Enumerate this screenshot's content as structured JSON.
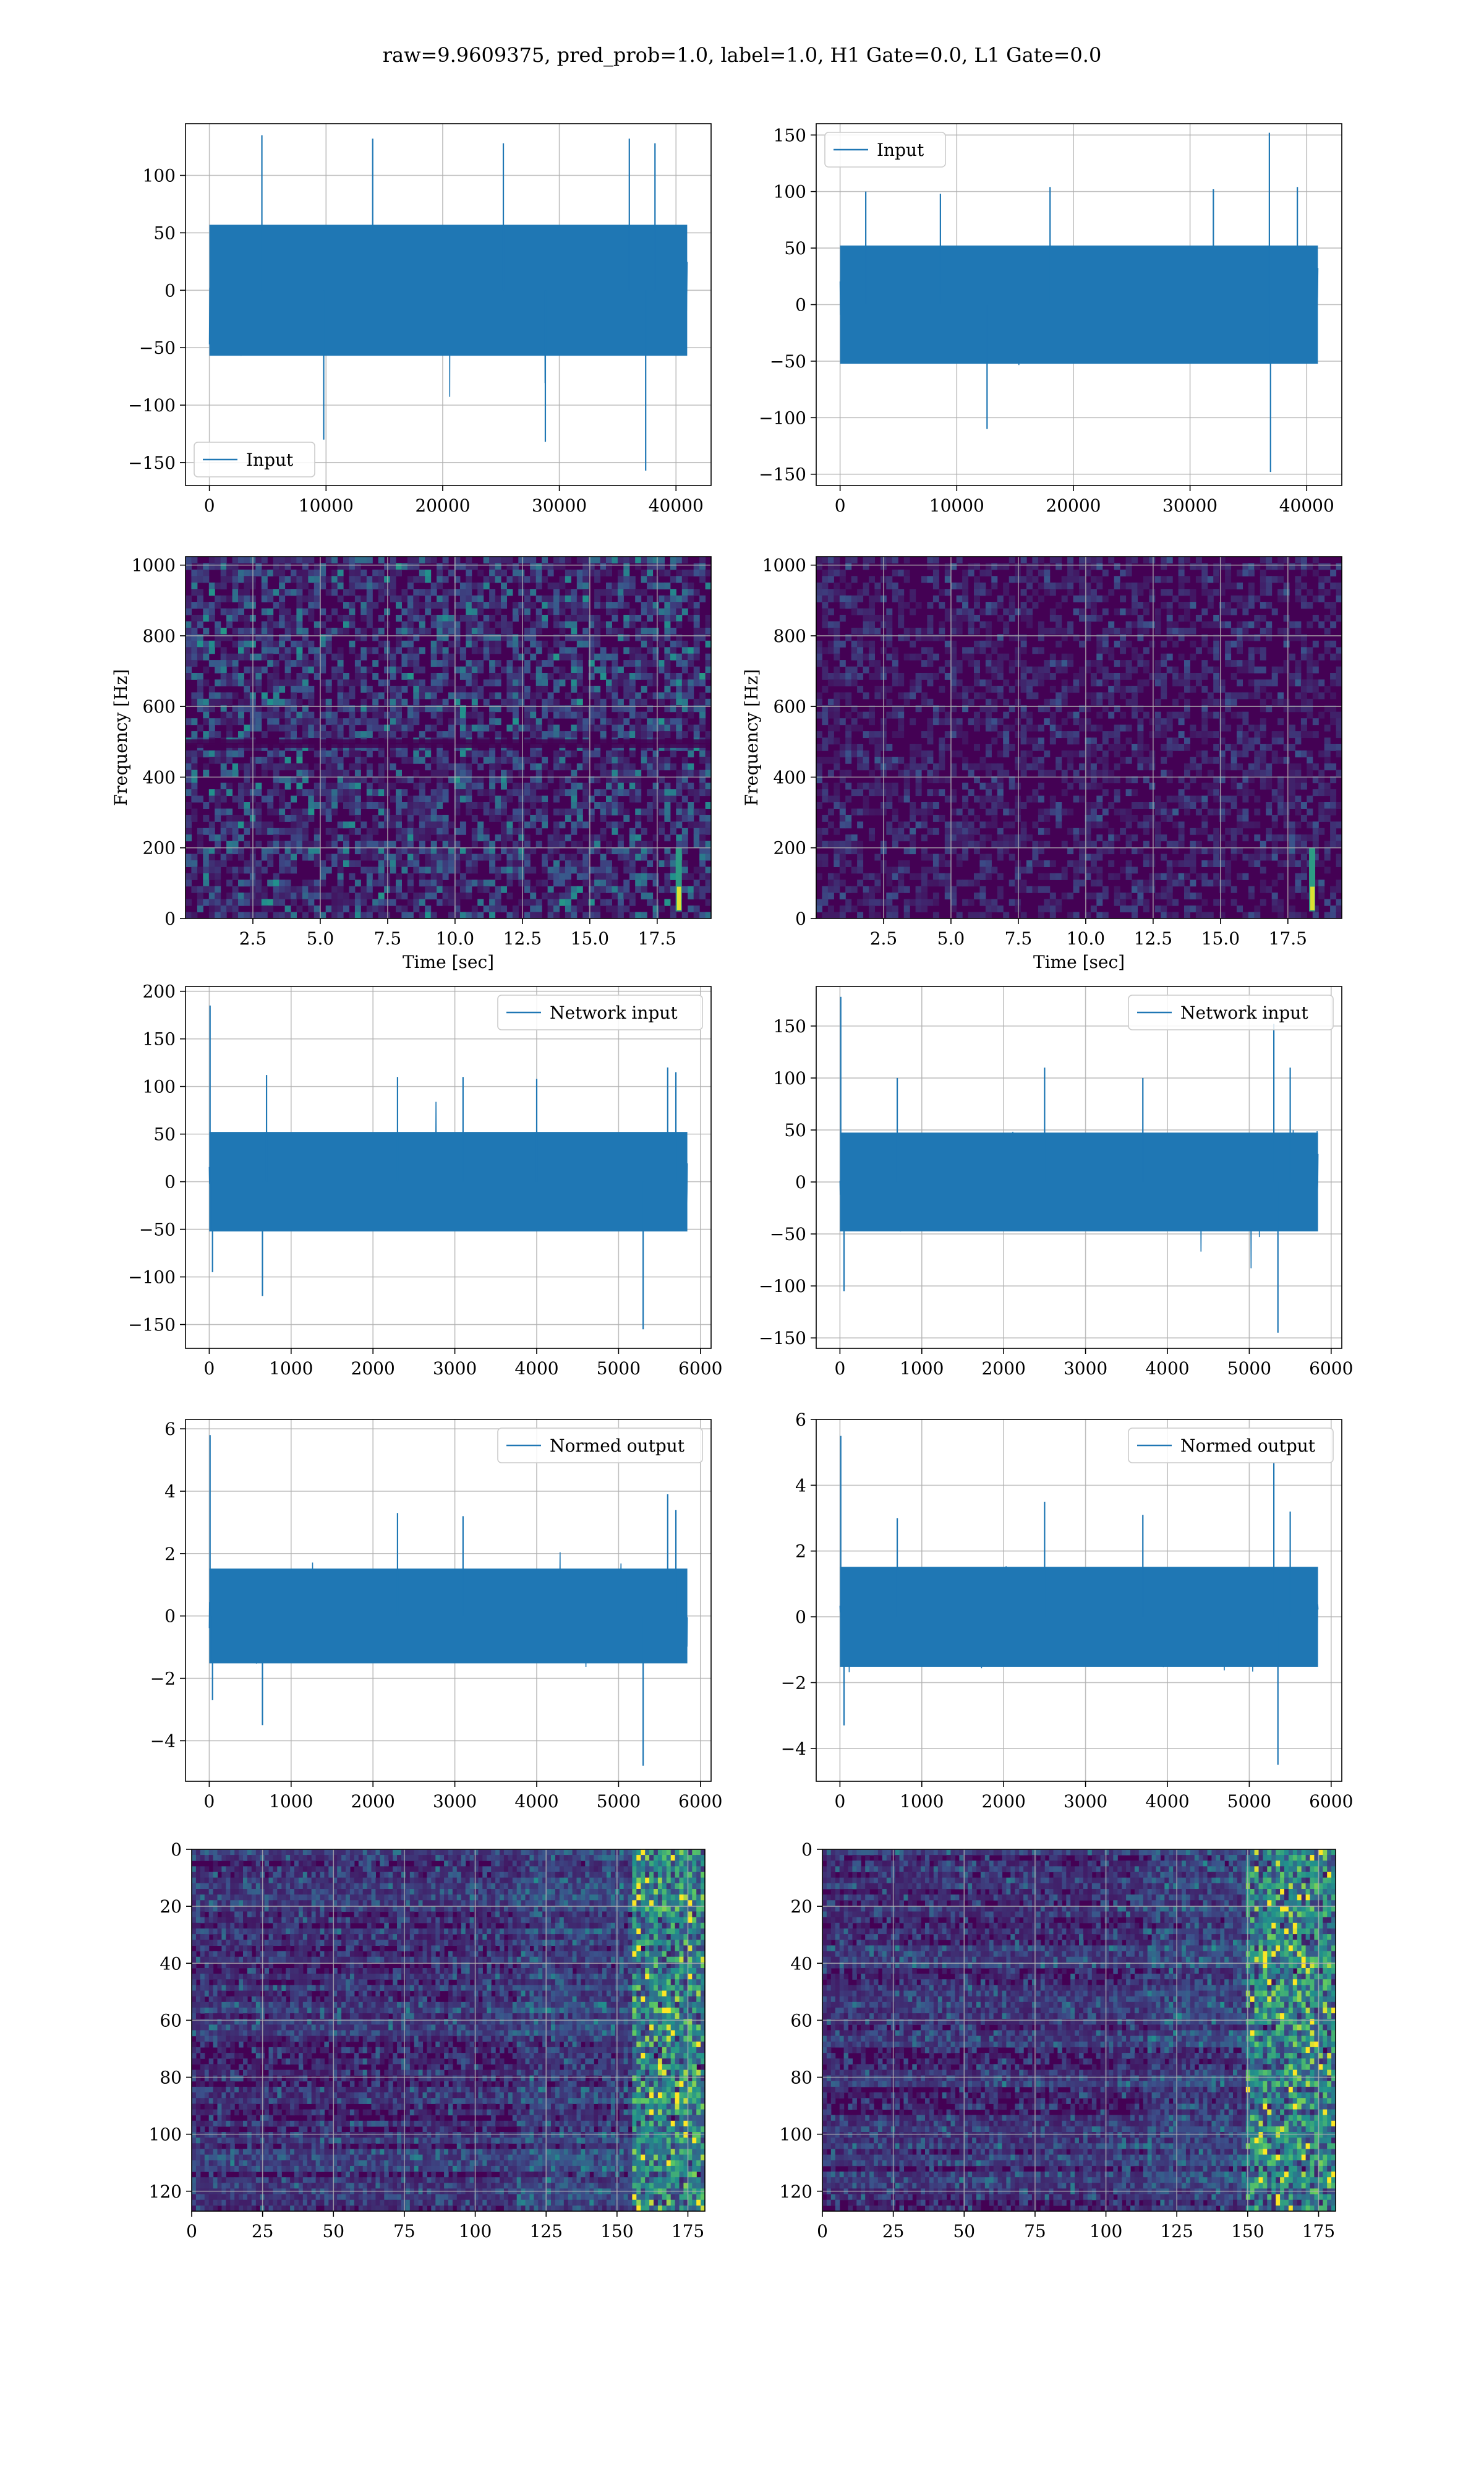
{
  "figure": {
    "suptitle": "raw=9.9609375, pred_prob=1.0, label=1.0, H1 Gate=0.0, L1 Gate=0.0",
    "colors": {
      "line": "#1f77b4",
      "grid": "#b0b0b0",
      "viridis_low": "#440154",
      "viridis_mid": "#21918c",
      "viridis_high": "#fde725"
    }
  },
  "chart_data": [
    {
      "id": "r1c1",
      "type": "line",
      "legend": {
        "label": "Input",
        "loc": "lower-left"
      },
      "xlim": [
        -2048,
        43008
      ],
      "ylim": [
        -170,
        145
      ],
      "xticks": [
        0,
        10000,
        20000,
        30000,
        40000
      ],
      "xticklabels": [
        "0",
        "10000",
        "20000",
        "30000",
        "40000"
      ],
      "yticks": [
        -150,
        -100,
        -50,
        0,
        50,
        100
      ],
      "yticklabels": [
        "−150",
        "−100",
        "−50",
        "0",
        "50",
        "100"
      ],
      "grid": true,
      "series": [
        {
          "x_range": [
            0,
            40960
          ],
          "band": [
            -60,
            60
          ],
          "base_amp": 55,
          "spikes": [
            [
              4500,
              135
            ],
            [
              9800,
              -130
            ],
            [
              14000,
              132
            ],
            [
              25200,
              128
            ],
            [
              28800,
              -132
            ],
            [
              36000,
              132
            ],
            [
              37400,
              -157
            ],
            [
              38200,
              128
            ]
          ]
        }
      ]
    },
    {
      "id": "r1c2",
      "type": "line",
      "legend": {
        "label": "Input",
        "loc": "upper-left"
      },
      "xlim": [
        -2048,
        43008
      ],
      "ylim": [
        -160,
        160
      ],
      "xticks": [
        0,
        10000,
        20000,
        30000,
        40000
      ],
      "xticklabels": [
        "0",
        "10000",
        "20000",
        "30000",
        "40000"
      ],
      "yticks": [
        -150,
        -100,
        -50,
        0,
        50,
        100,
        150
      ],
      "yticklabels": [
        "−150",
        "−100",
        "−50",
        "0",
        "50",
        "100",
        "150"
      ],
      "grid": true,
      "series": [
        {
          "x_range": [
            0,
            40960
          ],
          "band": [
            -55,
            55
          ],
          "base_amp": 52,
          "spikes": [
            [
              2200,
              100
            ],
            [
              8600,
              98
            ],
            [
              12600,
              -110
            ],
            [
              18000,
              104
            ],
            [
              32000,
              102
            ],
            [
              36800,
              152
            ],
            [
              36900,
              -148
            ],
            [
              39200,
              104
            ]
          ]
        }
      ]
    },
    {
      "id": "r2c1",
      "type": "heatmap",
      "xlabel": "Time [sec]",
      "ylabel": "Frequency [Hz]",
      "xlim": [
        0.0,
        19.5
      ],
      "ylim": [
        0,
        1024
      ],
      "xticks": [
        2.5,
        5.0,
        7.5,
        10.0,
        12.5,
        15.0,
        17.5
      ],
      "xticklabels": [
        "2.5",
        "5.0",
        "7.5",
        "10.0",
        "12.5",
        "15.0",
        "17.5"
      ],
      "yticks": [
        0,
        200,
        400,
        600,
        800,
        1000
      ],
      "yticklabels": [
        "0",
        "200",
        "400",
        "600",
        "800",
        "1000"
      ],
      "grid": true,
      "intensity": 0.55,
      "features": [
        {
          "kind": "chirp",
          "x": 18.3,
          "y_range": [
            20,
            200
          ]
        },
        {
          "kind": "dark_row",
          "y": 500
        },
        {
          "kind": "dark_row",
          "y": 490
        }
      ]
    },
    {
      "id": "r2c2",
      "type": "heatmap",
      "xlabel": "Time [sec]",
      "ylabel": "Frequency [Hz]",
      "xlim": [
        0.0,
        19.5
      ],
      "ylim": [
        0,
        1024
      ],
      "xticks": [
        2.5,
        5.0,
        7.5,
        10.0,
        12.5,
        15.0,
        17.5
      ],
      "xticklabels": [
        "2.5",
        "5.0",
        "7.5",
        "10.0",
        "12.5",
        "15.0",
        "17.5"
      ],
      "yticks": [
        0,
        200,
        400,
        600,
        800,
        1000
      ],
      "yticklabels": [
        "0",
        "200",
        "400",
        "600",
        "800",
        "1000"
      ],
      "grid": true,
      "intensity": 0.3,
      "features": [
        {
          "kind": "chirp",
          "x": 18.4,
          "y_range": [
            20,
            200
          ]
        }
      ]
    },
    {
      "id": "r3c1",
      "type": "line",
      "legend": {
        "label": "Network input",
        "loc": "upper-right"
      },
      "xlim": [
        -290,
        6130
      ],
      "ylim": [
        -175,
        205
      ],
      "xticks": [
        0,
        1000,
        2000,
        3000,
        4000,
        5000,
        6000
      ],
      "xticklabels": [
        "0",
        "1000",
        "2000",
        "3000",
        "4000",
        "5000",
        "6000"
      ],
      "yticks": [
        -150,
        -100,
        -50,
        0,
        50,
        100,
        150,
        200
      ],
      "yticklabels": [
        "−150",
        "−100",
        "−50",
        "0",
        "50",
        "100",
        "150",
        "200"
      ],
      "grid": true,
      "series": [
        {
          "x_range": [
            0,
            5840
          ],
          "band": [
            -55,
            55
          ],
          "base_amp": 50,
          "spikes": [
            [
              10,
              185
            ],
            [
              40,
              -95
            ],
            [
              650,
              -120
            ],
            [
              700,
              112
            ],
            [
              2300,
              110
            ],
            [
              3100,
              110
            ],
            [
              4000,
              108
            ],
            [
              5300,
              -155
            ],
            [
              5600,
              120
            ],
            [
              5700,
              115
            ]
          ]
        }
      ]
    },
    {
      "id": "r3c2",
      "type": "line",
      "legend": {
        "label": "Network input",
        "loc": "upper-right"
      },
      "xlim": [
        -290,
        6130
      ],
      "ylim": [
        -160,
        188
      ],
      "xticks": [
        0,
        1000,
        2000,
        3000,
        4000,
        5000,
        6000
      ],
      "xticklabels": [
        "0",
        "1000",
        "2000",
        "3000",
        "4000",
        "5000",
        "6000"
      ],
      "yticks": [
        -150,
        -100,
        -50,
        0,
        50,
        100,
        150
      ],
      "yticklabels": [
        "−150",
        "−100",
        "−50",
        "0",
        "50",
        "100",
        "150"
      ],
      "grid": true,
      "series": [
        {
          "x_range": [
            0,
            5840
          ],
          "band": [
            -50,
            50
          ],
          "base_amp": 48,
          "spikes": [
            [
              10,
              178
            ],
            [
              50,
              -105
            ],
            [
              700,
              100
            ],
            [
              2500,
              110
            ],
            [
              3700,
              100
            ],
            [
              5300,
              152
            ],
            [
              5350,
              -145
            ],
            [
              5500,
              110
            ]
          ]
        }
      ]
    },
    {
      "id": "r4c1",
      "type": "line",
      "legend": {
        "label": "Normed output",
        "loc": "upper-right"
      },
      "xlim": [
        -290,
        6130
      ],
      "ylim": [
        -5.3,
        6.3
      ],
      "xticks": [
        0,
        1000,
        2000,
        3000,
        4000,
        5000,
        6000
      ],
      "xticklabels": [
        "0",
        "1000",
        "2000",
        "3000",
        "4000",
        "5000",
        "6000"
      ],
      "yticks": [
        -4,
        -2,
        0,
        2,
        4,
        6
      ],
      "yticklabels": [
        "−4",
        "−2",
        "0",
        "2",
        "4",
        "6"
      ],
      "grid": true,
      "series": [
        {
          "x_range": [
            0,
            5840
          ],
          "band": [
            -1.6,
            1.6
          ],
          "base_amp": 1.5,
          "spikes": [
            [
              10,
              5.8
            ],
            [
              40,
              -2.7
            ],
            [
              650,
              -3.5
            ],
            [
              2300,
              3.3
            ],
            [
              3100,
              3.2
            ],
            [
              5300,
              -4.8
            ],
            [
              5600,
              3.9
            ],
            [
              5700,
              3.4
            ]
          ]
        }
      ]
    },
    {
      "id": "r4c2",
      "type": "line",
      "legend": {
        "label": "Normed output",
        "loc": "upper-right"
      },
      "xlim": [
        -290,
        6130
      ],
      "ylim": [
        -5.0,
        6.0
      ],
      "xticks": [
        0,
        1000,
        2000,
        3000,
        4000,
        5000,
        6000
      ],
      "xticklabels": [
        "0",
        "1000",
        "2000",
        "3000",
        "4000",
        "5000",
        "6000"
      ],
      "yticks": [
        -4,
        -2,
        0,
        2,
        4,
        6
      ],
      "yticklabels": [
        "−4",
        "−2",
        "0",
        "2",
        "4",
        "6"
      ],
      "grid": true,
      "series": [
        {
          "x_range": [
            0,
            5840
          ],
          "band": [
            -1.6,
            1.6
          ],
          "base_amp": 1.5,
          "spikes": [
            [
              10,
              5.5
            ],
            [
              50,
              -3.3
            ],
            [
              700,
              3.0
            ],
            [
              2500,
              3.5
            ],
            [
              3700,
              3.1
            ],
            [
              5300,
              4.7
            ],
            [
              5350,
              -4.5
            ],
            [
              5500,
              3.2
            ]
          ]
        }
      ]
    },
    {
      "id": "r5c1",
      "type": "heatmap",
      "orientation": "image",
      "xlim": [
        0,
        181
      ],
      "ylim": [
        127,
        0
      ],
      "xticks": [
        0,
        25,
        50,
        75,
        100,
        125,
        150,
        175
      ],
      "xticklabels": [
        "0",
        "25",
        "50",
        "75",
        "100",
        "125",
        "150",
        "175"
      ],
      "yticks": [
        0,
        20,
        40,
        60,
        80,
        100,
        120
      ],
      "yticklabels": [
        "0",
        "20",
        "40",
        "60",
        "80",
        "100",
        "120"
      ],
      "grid": true,
      "intensity": 0.35,
      "features": [
        {
          "kind": "bright_band",
          "x_range": [
            155,
            181
          ]
        }
      ]
    },
    {
      "id": "r5c2",
      "type": "heatmap",
      "orientation": "image",
      "xlim": [
        0,
        181
      ],
      "ylim": [
        127,
        0
      ],
      "xticks": [
        0,
        25,
        50,
        75,
        100,
        125,
        150,
        175
      ],
      "xticklabels": [
        "0",
        "25",
        "50",
        "75",
        "100",
        "125",
        "150",
        "175"
      ],
      "yticks": [
        0,
        20,
        40,
        60,
        80,
        100,
        120
      ],
      "yticklabels": [
        "0",
        "20",
        "40",
        "60",
        "80",
        "100",
        "120"
      ],
      "grid": true,
      "intensity": 0.35,
      "features": [
        {
          "kind": "bright_band",
          "x_range": [
            150,
            181
          ]
        }
      ]
    }
  ]
}
